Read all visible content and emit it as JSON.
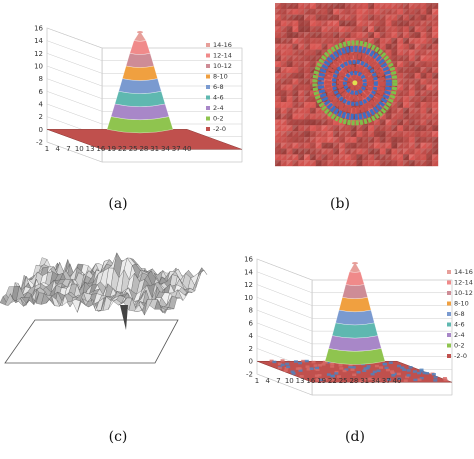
{
  "captions": {
    "a": "(a)",
    "b": "(b)",
    "c": "(c)",
    "d": "(d)"
  },
  "chart_data": [
    {
      "type": "surface",
      "panel": "a",
      "title": "",
      "z_ticks": [
        "16",
        "14",
        "12",
        "10",
        "8",
        "6",
        "4",
        "2",
        "0",
        "-2"
      ],
      "x_ticks": [
        "1",
        "4",
        "7",
        "10",
        "13",
        "16",
        "19",
        "22",
        "25",
        "28",
        "31",
        "34",
        "37",
        "40"
      ],
      "zlim": [
        -2,
        16
      ],
      "legend_position": "right",
      "legend": [
        "14-16",
        "12-14",
        "10-12",
        "8-10",
        "6-8",
        "4-6",
        "2-4",
        "0-2",
        "-2-0"
      ],
      "band_colors": [
        "#e79f9a",
        "#f08a8a",
        "#ce8c96",
        "#f0a040",
        "#7a9ad0",
        "#5fb8b0",
        "#a887c8",
        "#8fc44f",
        "#c0504d"
      ],
      "peak": 15.5,
      "noise": "none"
    },
    {
      "type": "heatmap",
      "panel": "b",
      "title": "",
      "description_colors": [
        "#c8504c",
        "#3f6fc4",
        "#7fbf4a",
        "#e0e050"
      ]
    },
    {
      "type": "surface",
      "panel": "c",
      "title": "",
      "noise": "high",
      "colors": [
        "#e0e0e0",
        "#909090",
        "#505050"
      ]
    },
    {
      "type": "surface",
      "panel": "d",
      "title": "",
      "z_ticks": [
        "16",
        "14",
        "12",
        "10",
        "8",
        "6",
        "4",
        "2",
        "0",
        "-2"
      ],
      "x_ticks": [
        "1",
        "4",
        "7",
        "10",
        "13",
        "16",
        "19",
        "22",
        "25",
        "28",
        "31",
        "34",
        "37",
        "40"
      ],
      "zlim": [
        -2,
        16
      ],
      "legend_position": "right",
      "legend": [
        "14-16",
        "12-14",
        "10-12",
        "8-10",
        "6-8",
        "4-6",
        "2-4",
        "0-2",
        "-2-0"
      ],
      "band_colors": [
        "#e79f9a",
        "#f08a8a",
        "#ce8c96",
        "#f0a040",
        "#7a9ad0",
        "#5fb8b0",
        "#a887c8",
        "#8fc44f",
        "#c0504d"
      ],
      "peak": 15.5,
      "noise": "low"
    }
  ]
}
